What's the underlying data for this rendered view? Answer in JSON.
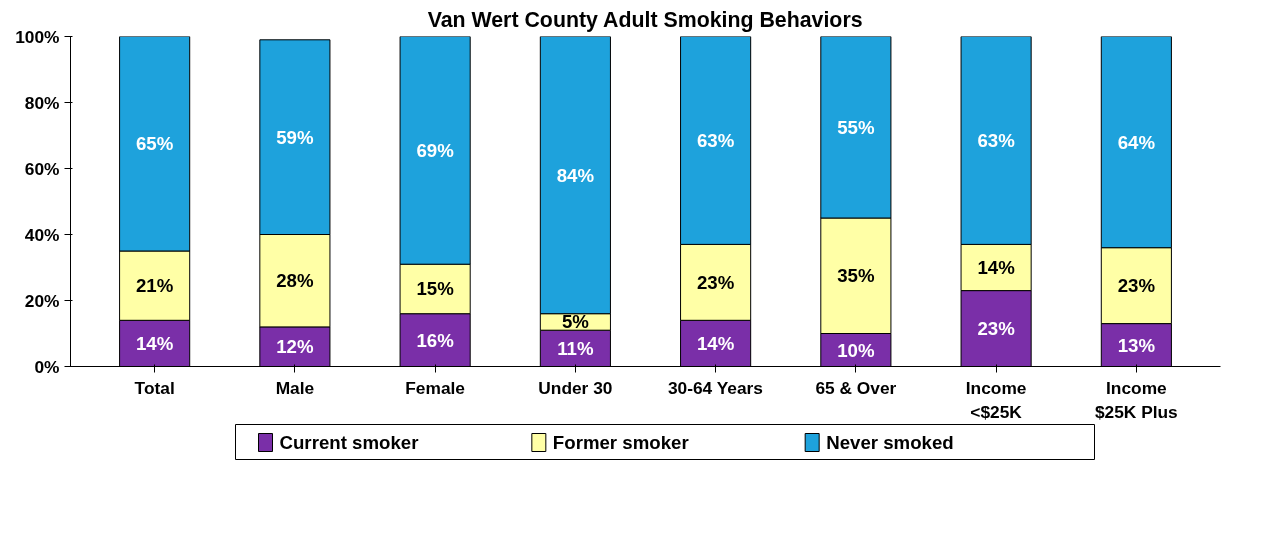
{
  "chart_data": {
    "type": "bar",
    "title": "Van Wert County Adult Smoking Behaviors",
    "categories": [
      "Total",
      "Male",
      "Female",
      "Under 30",
      "30-64 Years",
      "65 & Over",
      "Income\n<$25K",
      "Income\n$25K Plus"
    ],
    "stacked": true,
    "series": [
      {
        "name": "Current smoker",
        "color": "#7a2fa8",
        "values": [
          14,
          12,
          16,
          11,
          14,
          10,
          23,
          13
        ],
        "value_labels": [
          "14%",
          "12%",
          "16%",
          "11%",
          "14%",
          "10%",
          "23%",
          "13%"
        ]
      },
      {
        "name": "Former smoker",
        "color": "#ffffa6",
        "values": [
          21,
          28,
          15,
          5,
          23,
          35,
          14,
          23
        ],
        "value_labels": [
          "21%",
          "28%",
          "15%",
          "5%",
          "23%",
          "35%",
          "14%",
          "23%"
        ]
      },
      {
        "name": "Never smoked",
        "color": "#1ea2dc",
        "values": [
          65,
          59,
          69,
          84,
          63,
          55,
          63,
          64
        ],
        "value_labels": [
          "65%",
          "59%",
          "69%",
          "84%",
          "63%",
          "55%",
          "63%",
          "64%"
        ]
      }
    ],
    "ylim": [
      0,
      100
    ],
    "yticks": [
      {
        "value": 0,
        "label": "0%"
      },
      {
        "value": 20,
        "label": "20%"
      },
      {
        "value": 40,
        "label": "40%"
      },
      {
        "value": 60,
        "label": "60%"
      },
      {
        "value": 80,
        "label": "80%"
      },
      {
        "value": 100,
        "label": "100%"
      }
    ],
    "grid": false,
    "legend": "bottom"
  }
}
